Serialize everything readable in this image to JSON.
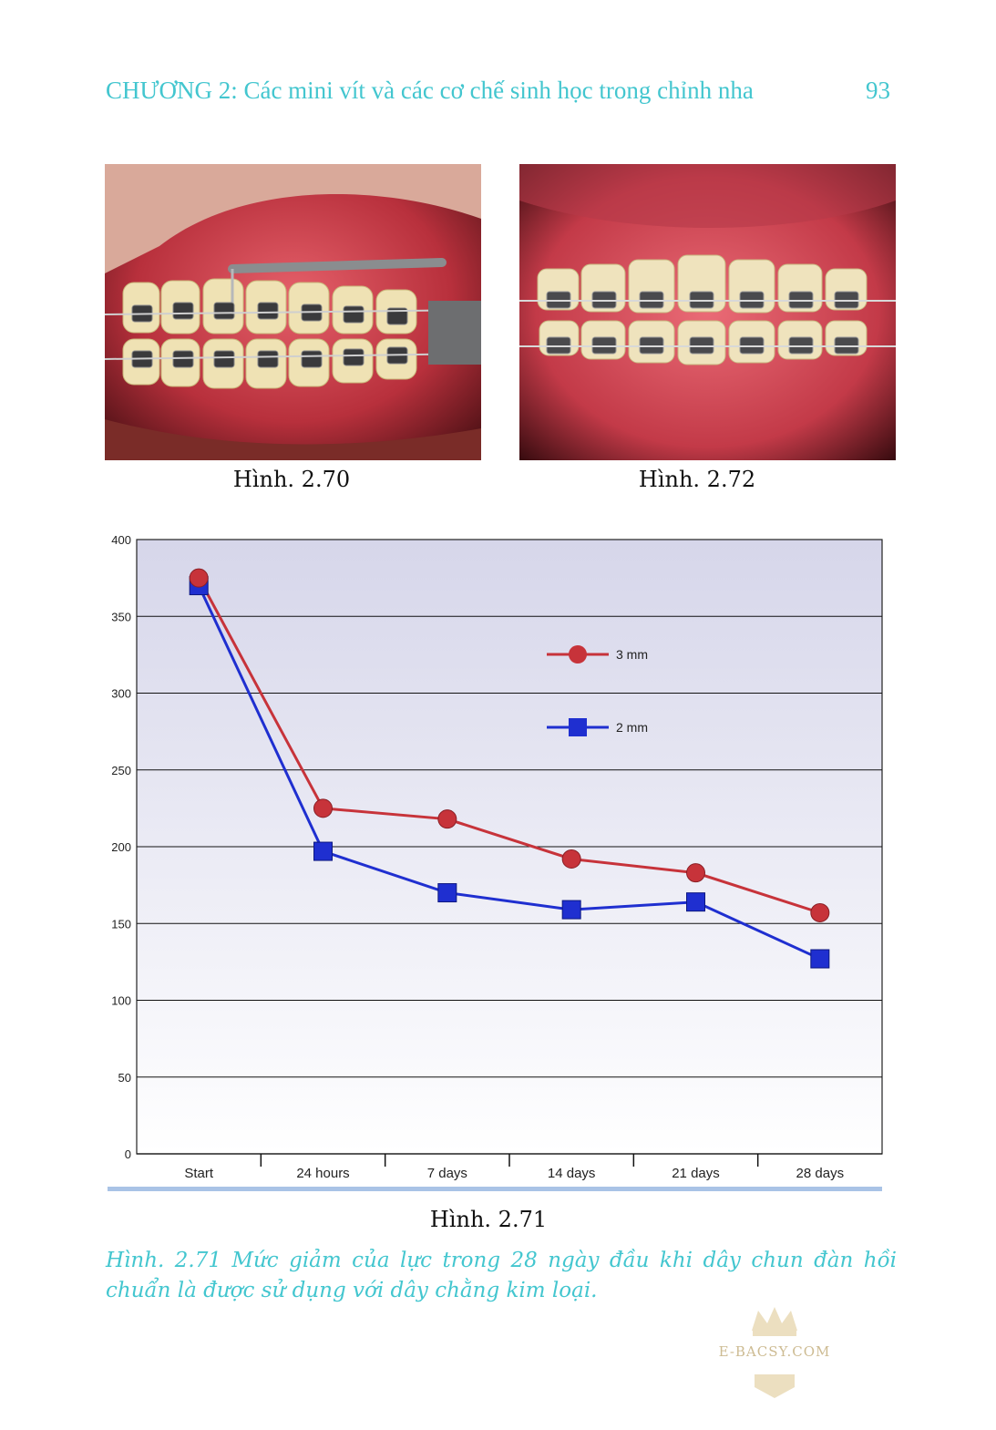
{
  "header": {
    "title": "CHƯƠNG 2: Các mini vít và các cơ chế sinh học trong chỉnh nha",
    "page_number": "93"
  },
  "photos": {
    "left_caption": "Hình. 2.70",
    "right_caption": "Hình. 2.72"
  },
  "chart_caption": "Hình. 2.71",
  "figure_description": "Hình. 2.71  Mức giảm của lực trong 28 ngày đầu  khi dây chun đàn hồi chuẩn là được sử dụng với dây chằng kim loại.",
  "watermark": {
    "text": "E-BACSY.COM"
  },
  "colors": {
    "accent": "#43c6cf",
    "series_3mm": "#c7333a",
    "series_2mm": "#1f2fd0"
  },
  "chart_data": {
    "type": "line",
    "categories": [
      "Start",
      "24 hours",
      "7 days",
      "14 days",
      "21 days",
      "28 days"
    ],
    "series": [
      {
        "name": "3 mm",
        "values": [
          375,
          225,
          218,
          192,
          183,
          157
        ],
        "marker": "circle",
        "color": "#c7333a"
      },
      {
        "name": "2 mm",
        "values": [
          370,
          197,
          170,
          159,
          164,
          127
        ],
        "marker": "square",
        "color": "#1f2fd0"
      }
    ],
    "yticks": [
      0,
      50,
      100,
      150,
      200,
      250,
      300,
      350,
      400
    ],
    "ylim": [
      0,
      400
    ],
    "grid": true,
    "legend_position": "upper-right inside plot"
  }
}
